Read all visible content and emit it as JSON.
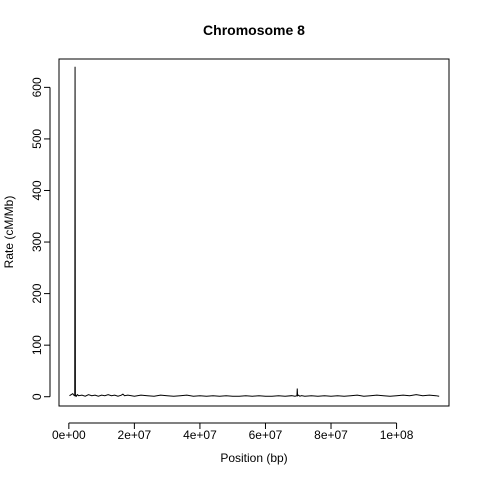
{
  "chart_data": {
    "type": "line",
    "title": "Chromosome 8",
    "xlabel": "Position (bp)",
    "ylabel": "Rate (cM/Mb)",
    "xlim": [
      -3000000,
      116000000
    ],
    "ylim": [
      -18,
      655
    ],
    "x_ticks": [
      0,
      20000000,
      40000000,
      60000000,
      80000000,
      100000000
    ],
    "x_tick_labels": [
      "0e+00",
      "2e+07",
      "4e+07",
      "6e+07",
      "8e+07",
      "1e+08"
    ],
    "y_ticks": [
      0,
      100,
      200,
      300,
      400,
      500,
      600
    ],
    "y_tick_labels": [
      "0",
      "100",
      "200",
      "300",
      "400",
      "500",
      "600"
    ],
    "grid": false,
    "series": [
      {
        "color": "#000000",
        "x": [
          200000,
          700000,
          1200000,
          1500000,
          1800000,
          1900000,
          2000000,
          2100000,
          2300000,
          2600000,
          3000000,
          4000000,
          5000000,
          6000000,
          7000000,
          8000000,
          9000000,
          10000000,
          11000000,
          12000000,
          13000000,
          14000000,
          15000000,
          16000000,
          16500000,
          17000000,
          18000000,
          20000000,
          22000000,
          24000000,
          26000000,
          28000000,
          30000000,
          32000000,
          34000000,
          36000000,
          38000000,
          40000000,
          42000000,
          44000000,
          46000000,
          48000000,
          50000000,
          52000000,
          54000000,
          56000000,
          58000000,
          60000000,
          62000000,
          64000000,
          66000000,
          68000000,
          69000000,
          69600000,
          69700000,
          69800000,
          70000000,
          70500000,
          71000000,
          72000000,
          74000000,
          76000000,
          78000000,
          80000000,
          82000000,
          84000000,
          86000000,
          88000000,
          90000000,
          92000000,
          94000000,
          96000000,
          98000000,
          100000000,
          102000000,
          104000000,
          106000000,
          108000000,
          110000000,
          112000000,
          113000000
        ],
        "y": [
          2,
          4,
          6,
          3,
          2,
          640,
          2,
          3,
          1,
          4,
          2,
          3,
          1,
          4,
          2,
          3,
          1,
          3,
          2,
          4,
          2,
          3,
          1,
          3,
          5,
          2,
          3,
          1,
          3,
          2,
          1,
          3,
          2,
          1,
          2,
          3,
          1,
          2,
          1,
          2,
          1,
          2,
          1,
          1,
          2,
          1,
          2,
          1,
          1,
          2,
          1,
          2,
          1,
          2,
          16,
          2,
          3,
          1,
          2,
          1,
          2,
          1,
          2,
          1,
          2,
          1,
          2,
          3,
          1,
          2,
          3,
          2,
          1,
          2,
          3,
          2,
          4,
          2,
          3,
          2,
          1
        ]
      }
    ]
  }
}
